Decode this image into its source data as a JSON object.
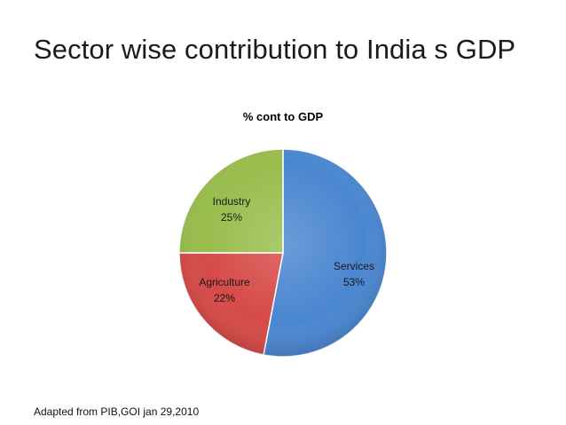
{
  "slide": {
    "title": "Sector wise contribution to India s GDP",
    "source": "Adapted from PIB,GOI jan 29,2010"
  },
  "chart_data": {
    "type": "pie",
    "title": "% cont to GDP",
    "categories": [
      "Services",
      "Agriculture",
      "Industry"
    ],
    "values": [
      53,
      22,
      25
    ],
    "labels": [
      "53%",
      "22%",
      "25%"
    ],
    "colors": [
      "#4a86d0",
      "#d64a48",
      "#98bd4d"
    ],
    "start": "12 o'clock",
    "direction": "clockwise",
    "legend": "none"
  }
}
